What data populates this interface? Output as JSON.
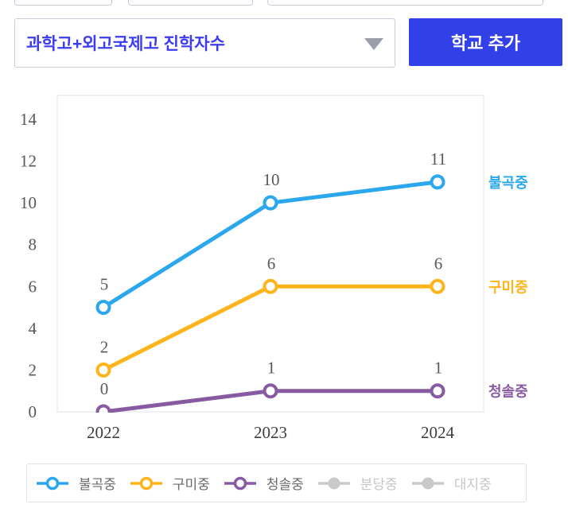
{
  "toolbar": {
    "metric_dropdown": {
      "value": "과학고+외고국제고 진학자수",
      "caret_icon": "triangle-down"
    },
    "add_school_button_label": "학교 추가"
  },
  "colors": {
    "button_background": "#3240e8",
    "dropdown_text": "#3c3cf2",
    "axis_text": "#585858",
    "category_text": "#3e3e3e",
    "data_label_text": "#595959",
    "plot_border": "#ececec",
    "legend_border": "#e2e2e2",
    "disabled_gray": "#c9c9c9"
  },
  "chart_data": {
    "type": "line",
    "title": "",
    "xlabel": "",
    "ylabel": "",
    "categories": [
      "2022",
      "2023",
      "2024"
    ],
    "series": [
      {
        "name": "불곡중",
        "values": [
          5,
          10,
          11
        ],
        "color": "#2aa7ef",
        "active": true
      },
      {
        "name": "구미중",
        "values": [
          2,
          6,
          6
        ],
        "color": "#ffb41c",
        "active": true
      },
      {
        "name": "청솔중",
        "values": [
          0,
          1,
          1
        ],
        "color": "#875ba1",
        "active": true
      },
      {
        "name": "분당중",
        "values": [],
        "color": "#c9c9c9",
        "active": false
      },
      {
        "name": "대지중",
        "values": [],
        "color": "#c9c9c9",
        "active": false
      }
    ],
    "ylim": [
      0,
      14
    ],
    "yticks": [
      0,
      2,
      4,
      6,
      8,
      10,
      12,
      14
    ],
    "grid": false,
    "data_labels": true,
    "series_labels_right": true,
    "legend_position": "bottom"
  }
}
